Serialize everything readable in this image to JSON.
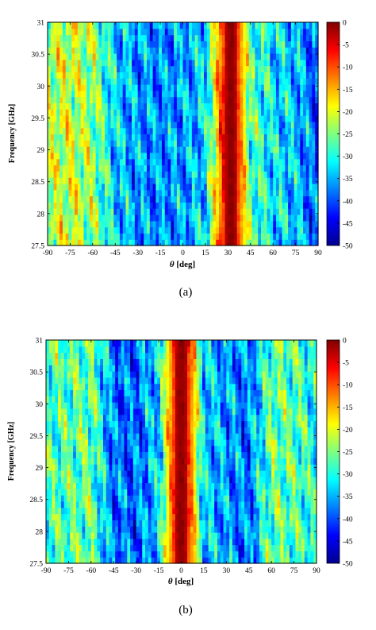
{
  "chart_data": [
    {
      "type": "heatmap",
      "caption": "(a)",
      "xlabel_symbol": "θ",
      "xlabel_unit": "[deg]",
      "ylabel": "Frequency [GHz]",
      "xlim": [
        -90,
        90
      ],
      "ylim": [
        27.5,
        31
      ],
      "xticks": [
        "-90",
        "-75",
        "-60",
        "-45",
        "-30",
        "-15",
        "0",
        "15",
        "30",
        "45",
        "60",
        "75",
        "90"
      ],
      "yticks": [
        "27.5",
        "28",
        "28.5",
        "29",
        "29.5",
        "30",
        "30.5",
        "31"
      ],
      "colorbar": {
        "range": [
          -50,
          0
        ],
        "ticks": [
          "0",
          "-5",
          "-10",
          "-15",
          "-20",
          "-25",
          "-30",
          "-35",
          "-40",
          "-45",
          "-50"
        ],
        "colormap": "jet"
      },
      "beam_center_deg": 32,
      "beam_peak_db": 0,
      "angles_deg": [
        -90,
        -75,
        -60,
        -45,
        -30,
        -15,
        0,
        15,
        30,
        45,
        60,
        75,
        90
      ],
      "mean_level_db": [
        -22,
        -21,
        -24,
        -33,
        -36,
        -37,
        -36,
        -33,
        -2,
        -27,
        -32,
        -34,
        -40
      ]
    },
    {
      "type": "heatmap",
      "caption": "(b)",
      "xlabel_symbol": "θ",
      "xlabel_unit": "[deg]",
      "ylabel": "Frequency [GHz]",
      "xlim": [
        -90,
        90
      ],
      "ylim": [
        27.5,
        31
      ],
      "xticks": [
        "-90",
        "-75",
        "-60",
        "-45",
        "-30",
        "-15",
        "0",
        "15",
        "30",
        "45",
        "60",
        "75",
        "90"
      ],
      "yticks": [
        "27.5",
        "28",
        "28.5",
        "29",
        "29.5",
        "30",
        "30.5",
        "31"
      ],
      "colorbar": {
        "range": [
          -50,
          0
        ],
        "ticks": [
          "0",
          "-5",
          "-10",
          "-15",
          "-20",
          "-25",
          "-30",
          "-35",
          "-40",
          "-45",
          "-50"
        ],
        "colormap": "jet"
      },
      "beam_center_deg": 0,
      "beam_peak_db": 0,
      "angles_deg": [
        -90,
        -75,
        -60,
        -45,
        -30,
        -15,
        0,
        15,
        30,
        45,
        60,
        75,
        90
      ],
      "mean_level_db": [
        -28,
        -27,
        -26,
        -38,
        -39,
        -33,
        0,
        -33,
        -36,
        -38,
        -26,
        -27,
        -30
      ]
    }
  ]
}
